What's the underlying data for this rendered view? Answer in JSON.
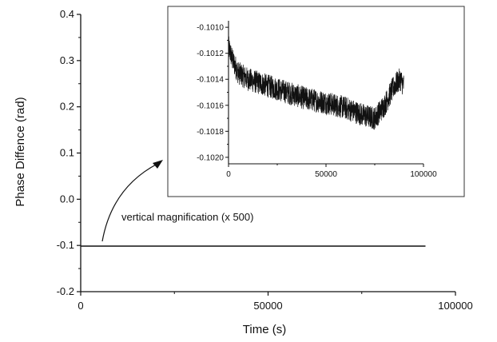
{
  "chart_data": [
    {
      "type": "line",
      "title": "",
      "xlabel": "Time (s)",
      "ylabel": "Phase Diffence (rad)",
      "xlim": [
        0,
        100000
      ],
      "ylim": [
        -0.2,
        0.4
      ],
      "xticks": [
        0,
        50000,
        100000
      ],
      "yticks": [
        -0.2,
        -0.1,
        0.0,
        0.1,
        0.2,
        0.3,
        0.4
      ],
      "xtick_labels": [
        "0",
        "50000",
        "100000"
      ],
      "ytick_labels": [
        "-0.2",
        "-0.1",
        "0.0",
        "0.1",
        "0.2",
        "0.3",
        "0.4"
      ],
      "grid": false,
      "series": [
        {
          "x": [
            0,
            92000
          ],
          "y": [
            -0.1015,
            -0.1015
          ]
        }
      ],
      "annotations": [
        {
          "text": "vertical magnification (x 500)"
        }
      ],
      "line_color": "#111111"
    },
    {
      "type": "line",
      "title": "",
      "xlabel": "",
      "ylabel": "",
      "inset": true,
      "xlim": [
        0,
        100000
      ],
      "ylim": [
        -0.10205,
        -0.10095
      ],
      "xticks": [
        0,
        50000,
        100000
      ],
      "yticks": [
        -0.102,
        -0.1018,
        -0.1016,
        -0.1014,
        -0.1012,
        -0.101
      ],
      "xtick_labels": [
        "0",
        "50000",
        "100000"
      ],
      "ytick_labels": [
        "-0.1020",
        "-0.1018",
        "-0.1016",
        "-0.1014",
        "-0.1012",
        "-0.1010"
      ],
      "grid": false,
      "series": [
        {
          "x": [
            0,
            2000,
            5000,
            10000,
            20000,
            30000,
            40000,
            50000,
            60000,
            70000,
            75000,
            80000,
            85000,
            88000,
            90000
          ],
          "y": [
            -0.10115,
            -0.10125,
            -0.10135,
            -0.1014,
            -0.10145,
            -0.1015,
            -0.10155,
            -0.10158,
            -0.10162,
            -0.10168,
            -0.1017,
            -0.1016,
            -0.10145,
            -0.1014,
            -0.10145
          ],
          "noise_amplitude": 9e-05
        }
      ],
      "line_color": "#111111"
    }
  ]
}
